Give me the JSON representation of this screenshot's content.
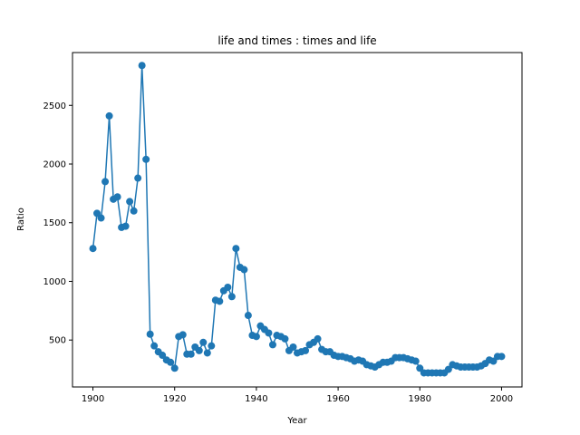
{
  "chart_data": {
    "type": "line",
    "title": "life and times : times and life",
    "xlabel": "Year",
    "ylabel": "Ratio",
    "xlim": [
      1895,
      2005
    ],
    "ylim": [
      100,
      2950
    ],
    "xticks": [
      1900,
      1920,
      1940,
      1960,
      1980,
      2000
    ],
    "yticks": [
      500,
      1000,
      1500,
      2000,
      2500
    ],
    "grid": false,
    "color": "#1f77b4",
    "marker": "circle",
    "x": [
      1900,
      1901,
      1902,
      1903,
      1904,
      1905,
      1906,
      1907,
      1908,
      1909,
      1910,
      1911,
      1912,
      1913,
      1914,
      1915,
      1916,
      1917,
      1918,
      1919,
      1920,
      1921,
      1922,
      1923,
      1924,
      1925,
      1926,
      1927,
      1928,
      1929,
      1930,
      1931,
      1932,
      1933,
      1934,
      1935,
      1936,
      1937,
      1938,
      1939,
      1940,
      1941,
      1942,
      1943,
      1944,
      1945,
      1946,
      1947,
      1948,
      1949,
      1950,
      1951,
      1952,
      1953,
      1954,
      1955,
      1956,
      1957,
      1958,
      1959,
      1960,
      1961,
      1962,
      1963,
      1964,
      1965,
      1966,
      1967,
      1968,
      1969,
      1970,
      1971,
      1972,
      1973,
      1974,
      1975,
      1976,
      1977,
      1978,
      1979,
      1980,
      1981,
      1982,
      1983,
      1984,
      1985,
      1986,
      1987,
      1988,
      1989,
      1990,
      1991,
      1992,
      1993,
      1994,
      1995,
      1996,
      1997,
      1998,
      1999,
      2000
    ],
    "y": [
      1280,
      1580,
      1540,
      1850,
      2410,
      1700,
      1720,
      1460,
      1470,
      1680,
      1600,
      1880,
      2840,
      2040,
      550,
      450,
      400,
      370,
      330,
      310,
      260,
      530,
      545,
      380,
      380,
      440,
      410,
      480,
      390,
      450,
      840,
      830,
      920,
      950,
      870,
      1280,
      1120,
      1100,
      710,
      540,
      530,
      620,
      590,
      560,
      460,
      540,
      530,
      510,
      410,
      440,
      390,
      400,
      410,
      460,
      480,
      510,
      420,
      400,
      400,
      370,
      360,
      360,
      350,
      340,
      320,
      330,
      320,
      290,
      280,
      270,
      290,
      310,
      310,
      320,
      350,
      350,
      350,
      340,
      330,
      320,
      260,
      220,
      220,
      220,
      220,
      220,
      220,
      250,
      290,
      280,
      270,
      270,
      270,
      270,
      270,
      280,
      300,
      330,
      320,
      360,
      360
    ]
  }
}
